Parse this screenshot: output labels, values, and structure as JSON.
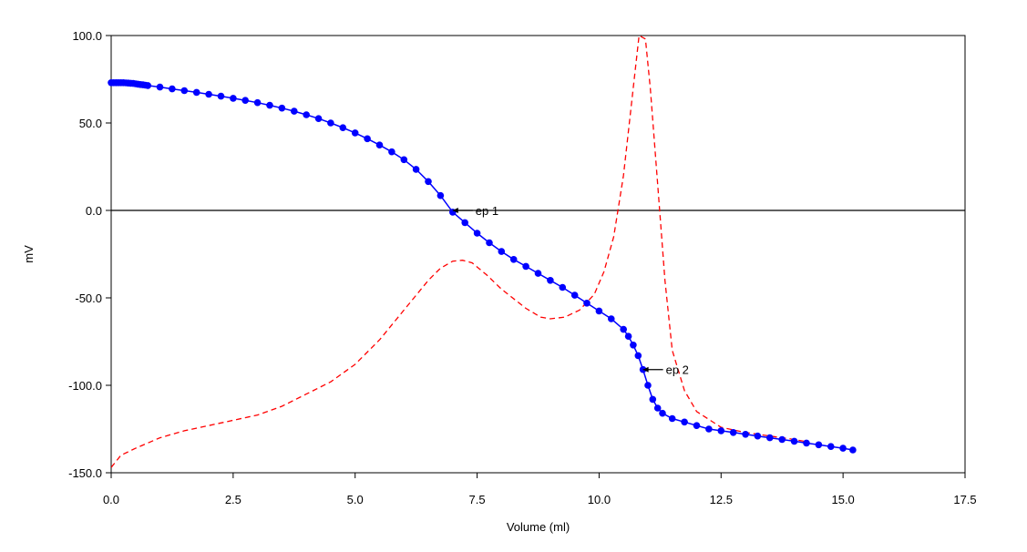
{
  "chart_data": {
    "type": "line",
    "title": "",
    "xlabel": "Volume (ml)",
    "ylabel": "mV",
    "xlim": [
      0.0,
      17.5
    ],
    "ylim": [
      -150.0,
      100.0
    ],
    "x_ticks": [
      "0.0",
      "2.5",
      "5.0",
      "7.5",
      "10.0",
      "12.5",
      "15.0",
      "17.5"
    ],
    "y_ticks": [
      "100.0",
      "50.0",
      "0.0",
      "-50.0",
      "-100.0",
      "-150.0"
    ],
    "x_tick_values": [
      0,
      2.5,
      5,
      7.5,
      10,
      12.5,
      15,
      17.5
    ],
    "y_tick_values": [
      100,
      50,
      0,
      -50,
      -100,
      -150
    ],
    "grid": false,
    "zero_line": true,
    "colors": {
      "titration": "#0000ff",
      "derivative": "#ff0000",
      "axis": "#000000"
    },
    "series": [
      {
        "style": "line-with-markers",
        "points": [
          [
            0.0,
            73
          ],
          [
            0.05,
            73
          ],
          [
            0.1,
            73
          ],
          [
            0.15,
            73
          ],
          [
            0.2,
            73
          ],
          [
            0.25,
            73
          ],
          [
            0.3,
            72.9
          ],
          [
            0.35,
            72.8
          ],
          [
            0.4,
            72.7
          ],
          [
            0.45,
            72.6
          ],
          [
            0.5,
            72.4
          ],
          [
            0.55,
            72.2
          ],
          [
            0.6,
            72.0
          ],
          [
            0.65,
            71.8
          ],
          [
            0.7,
            71.6
          ],
          [
            0.75,
            71.4
          ],
          [
            1.0,
            70.5
          ],
          [
            1.25,
            69.5
          ],
          [
            1.5,
            68.5
          ],
          [
            1.75,
            67.5
          ],
          [
            2.0,
            66.4
          ],
          [
            2.25,
            65.3
          ],
          [
            2.5,
            64.1
          ],
          [
            2.75,
            62.9
          ],
          [
            3.0,
            61.6
          ],
          [
            3.25,
            60.1
          ],
          [
            3.5,
            58.5
          ],
          [
            3.75,
            56.7
          ],
          [
            4.0,
            54.7
          ],
          [
            4.25,
            52.5
          ],
          [
            4.5,
            50.0
          ],
          [
            4.75,
            47.3
          ],
          [
            5.0,
            44.3
          ],
          [
            5.25,
            41.0
          ],
          [
            5.5,
            37.4
          ],
          [
            5.75,
            33.5
          ],
          [
            6.0,
            29.0
          ],
          [
            6.25,
            23.5
          ],
          [
            6.5,
            16.5
          ],
          [
            6.75,
            8.5
          ],
          [
            7.0,
            -1
          ],
          [
            7.25,
            -7
          ],
          [
            7.5,
            -13
          ],
          [
            7.75,
            -18.5
          ],
          [
            8.0,
            -23.5
          ],
          [
            8.25,
            -28
          ],
          [
            8.5,
            -32
          ],
          [
            8.75,
            -36
          ],
          [
            9.0,
            -40
          ],
          [
            9.25,
            -44
          ],
          [
            9.5,
            -48.5
          ],
          [
            9.75,
            -53
          ],
          [
            10.0,
            -57.5
          ],
          [
            10.25,
            -62
          ],
          [
            10.5,
            -68
          ],
          [
            10.6,
            -72
          ],
          [
            10.7,
            -77
          ],
          [
            10.8,
            -83
          ],
          [
            10.9,
            -91
          ],
          [
            11.0,
            -100
          ],
          [
            11.1,
            -108
          ],
          [
            11.2,
            -113
          ],
          [
            11.3,
            -116
          ],
          [
            11.5,
            -119
          ],
          [
            11.75,
            -121
          ],
          [
            12.0,
            -123
          ],
          [
            12.25,
            -125
          ],
          [
            12.5,
            -126
          ],
          [
            12.75,
            -127
          ],
          [
            13.0,
            -128
          ],
          [
            13.25,
            -129
          ],
          [
            13.5,
            -130
          ],
          [
            13.75,
            -131
          ],
          [
            14.0,
            -132
          ],
          [
            14.25,
            -133
          ],
          [
            14.5,
            -134
          ],
          [
            14.75,
            -135
          ],
          [
            15.0,
            -136
          ],
          [
            15.2,
            -137
          ]
        ]
      },
      {
        "style": "dashed",
        "points": [
          [
            0.0,
            -147
          ],
          [
            0.2,
            -140
          ],
          [
            0.5,
            -136
          ],
          [
            1.0,
            -130
          ],
          [
            1.5,
            -126
          ],
          [
            2.0,
            -123
          ],
          [
            2.5,
            -120
          ],
          [
            3.0,
            -117
          ],
          [
            3.5,
            -112
          ],
          [
            4.0,
            -105
          ],
          [
            4.5,
            -98
          ],
          [
            5.0,
            -88
          ],
          [
            5.5,
            -74
          ],
          [
            6.0,
            -57
          ],
          [
            6.5,
            -40
          ],
          [
            6.75,
            -33
          ],
          [
            7.0,
            -29
          ],
          [
            7.2,
            -28.5
          ],
          [
            7.4,
            -30
          ],
          [
            7.7,
            -37
          ],
          [
            8.0,
            -45
          ],
          [
            8.5,
            -56
          ],
          [
            8.8,
            -61
          ],
          [
            9.0,
            -62
          ],
          [
            9.3,
            -61
          ],
          [
            9.6,
            -57
          ],
          [
            9.9,
            -48
          ],
          [
            10.1,
            -35
          ],
          [
            10.3,
            -15
          ],
          [
            10.5,
            20
          ],
          [
            10.7,
            70
          ],
          [
            10.82,
            100
          ],
          [
            10.95,
            98
          ],
          [
            11.05,
            70
          ],
          [
            11.2,
            15
          ],
          [
            11.35,
            -40
          ],
          [
            11.5,
            -80
          ],
          [
            11.75,
            -103
          ],
          [
            12.0,
            -115
          ],
          [
            12.5,
            -124
          ],
          [
            13.0,
            -127
          ],
          [
            13.5,
            -129
          ],
          [
            14.0,
            -131
          ],
          [
            14.2,
            -132
          ]
        ]
      }
    ],
    "annotations": [
      {
        "label": "ep 1",
        "x": 7.0,
        "y": 0
      },
      {
        "label": "ep 2",
        "x": 10.9,
        "y": -91
      }
    ]
  }
}
